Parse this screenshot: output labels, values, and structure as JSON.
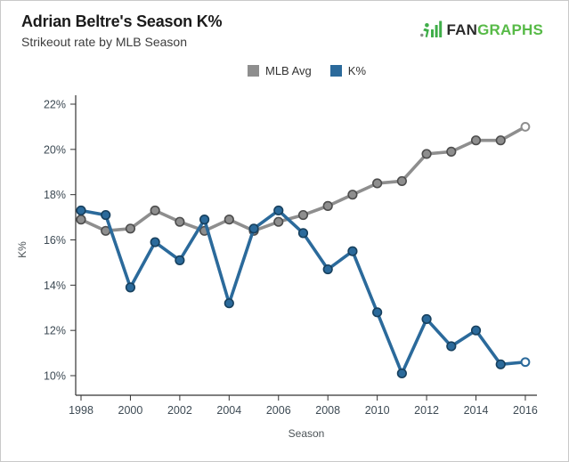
{
  "header": {
    "title": "Adrian Beltre's Season K%",
    "subtitle": "Strikeout rate by MLB Season"
  },
  "logo": {
    "fan": "FAN",
    "graphs": "GRAPHS",
    "green": "#57ba47",
    "dark": "#2b2b2b"
  },
  "chart_data": {
    "type": "line",
    "title": "Adrian Beltre's Season K%",
    "subtitle": "Strikeout rate by MLB Season",
    "xlabel": "Season",
    "ylabel": "K%",
    "grid": false,
    "legend_position": "top",
    "x": [
      1998,
      1999,
      2000,
      2001,
      2002,
      2003,
      2004,
      2005,
      2006,
      2007,
      2008,
      2009,
      2010,
      2011,
      2012,
      2013,
      2014,
      2015,
      2016
    ],
    "xticks": [
      1998,
      2000,
      2002,
      2004,
      2006,
      2008,
      2010,
      2012,
      2014,
      2016
    ],
    "yticks": [
      10,
      12,
      14,
      16,
      18,
      20,
      22
    ],
    "ytick_suffix": "%",
    "ylim": [
      10,
      22
    ],
    "series": [
      {
        "name": "MLB Avg",
        "color": "#8e8e8e",
        "marker_edge": "#4d4d4d",
        "open_last_point": true,
        "values": [
          16.9,
          16.4,
          16.5,
          17.3,
          16.8,
          16.4,
          16.9,
          16.4,
          16.8,
          17.1,
          17.5,
          18.0,
          18.5,
          18.6,
          19.8,
          19.9,
          20.4,
          20.4,
          21.0
        ]
      },
      {
        "name": "K%",
        "color": "#2b6a9b",
        "marker_edge": "#17405e",
        "open_last_point": true,
        "values": [
          17.3,
          17.1,
          13.9,
          15.9,
          15.1,
          16.9,
          13.2,
          16.5,
          17.3,
          16.3,
          14.7,
          15.5,
          12.8,
          10.1,
          12.5,
          11.3,
          12.0,
          10.5,
          10.6
        ]
      }
    ]
  }
}
